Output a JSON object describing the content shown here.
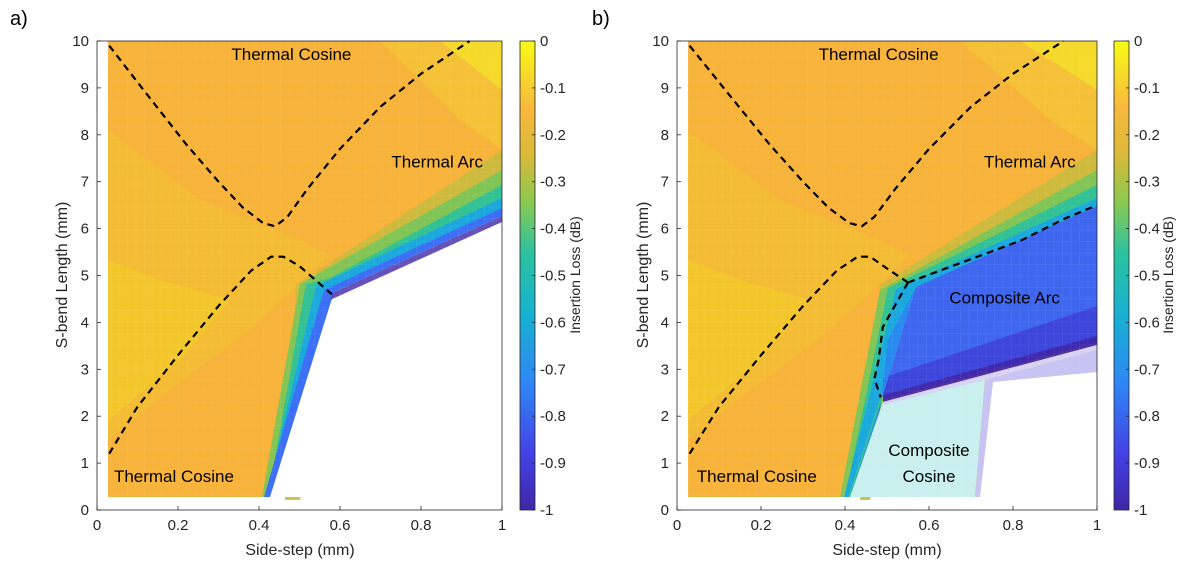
{
  "chart_data": [
    {
      "type": "heatmap",
      "panel_label": "a)",
      "xlabel": "Side-step (mm)",
      "ylabel": "S-bend Length (mm)",
      "xlim": [
        0,
        1
      ],
      "ylim": [
        0,
        10
      ],
      "x_ticks": [
        "0",
        "0.2",
        "0.4",
        "0.6",
        "0.8",
        "1"
      ],
      "y_ticks": [
        "0",
        "1",
        "2",
        "3",
        "4",
        "5",
        "6",
        "7",
        "8",
        "9",
        "10"
      ],
      "colorbar": {
        "label": "Insertion Loss (dB)",
        "range": [
          -1,
          0
        ],
        "ticks": [
          "0",
          "-0.1",
          "-0.2",
          "-0.3",
          "-0.4",
          "-0.5",
          "-0.6",
          "-0.7",
          "-0.8",
          "-0.9",
          "-1"
        ],
        "colormap": [
          "#3e26a8",
          "#4552f0",
          "#1ea6d8",
          "#2cc29e",
          "#96c745",
          "#f5ae3a",
          "#f9fb15"
        ]
      },
      "regions": [
        {
          "label": "Thermal Cosine",
          "x": 0.48,
          "y": 9.6
        },
        {
          "label": "Thermal Arc",
          "x": 0.84,
          "y": 7.3
        },
        {
          "label": "Thermal Cosine",
          "x": 0.19,
          "y": 0.6
        }
      ],
      "boundaries": [
        {
          "x": [
            0.03,
            0.12,
            0.22,
            0.3,
            0.36,
            0.41,
            0.44,
            0.47,
            0.52,
            0.6,
            0.7,
            0.8,
            0.92
          ],
          "y": [
            9.9,
            8.9,
            7.8,
            7.0,
            6.45,
            6.12,
            6.05,
            6.25,
            6.85,
            7.7,
            8.6,
            9.3,
            10.0
          ]
        },
        {
          "x": [
            0.03,
            0.1,
            0.2,
            0.3,
            0.38,
            0.43,
            0.46,
            0.5,
            0.54,
            0.58
          ],
          "y": [
            1.2,
            2.2,
            3.3,
            4.35,
            5.1,
            5.4,
            5.4,
            5.2,
            4.9,
            4.6
          ]
        }
      ]
    },
    {
      "type": "heatmap",
      "panel_label": "b)",
      "xlabel": "Side-step (mm)",
      "ylabel": "S-bend Length (mm)",
      "xlim": [
        0,
        1
      ],
      "ylim": [
        0,
        10
      ],
      "x_ticks": [
        "0",
        "0.2",
        "0.4",
        "0.6",
        "0.8",
        "1"
      ],
      "y_ticks": [
        "0",
        "1",
        "2",
        "3",
        "4",
        "5",
        "6",
        "7",
        "8",
        "9",
        "10"
      ],
      "colorbar": {
        "label": "Insertion Loss (dB)",
        "range": [
          -1,
          0
        ],
        "ticks": [
          "0",
          "-0.1",
          "-0.2",
          "-0.3",
          "-0.4",
          "-0.5",
          "-0.6",
          "-0.7",
          "-0.8",
          "-0.9",
          "-1"
        ],
        "colormap": [
          "#3e26a8",
          "#4552f0",
          "#1ea6d8",
          "#2cc29e",
          "#96c745",
          "#f5ae3a",
          "#f9fb15"
        ]
      },
      "regions": [
        {
          "label": "Thermal Cosine",
          "x": 0.48,
          "y": 9.6
        },
        {
          "label": "Thermal Arc",
          "x": 0.84,
          "y": 7.3
        },
        {
          "label": "Composite Arc",
          "x": 0.78,
          "y": 4.4
        },
        {
          "label": "Composite",
          "x": 0.6,
          "y": 1.15
        },
        {
          "label": "Cosine",
          "x": 0.6,
          "y": 0.6
        },
        {
          "label": "Thermal Cosine",
          "x": 0.19,
          "y": 0.6
        }
      ],
      "boundaries": [
        {
          "x": [
            0.03,
            0.12,
            0.22,
            0.3,
            0.36,
            0.41,
            0.44,
            0.47,
            0.52,
            0.6,
            0.7,
            0.8,
            0.92
          ],
          "y": [
            9.9,
            8.9,
            7.8,
            7.0,
            6.45,
            6.12,
            6.05,
            6.25,
            6.85,
            7.7,
            8.6,
            9.3,
            10.0
          ]
        },
        {
          "x": [
            0.03,
            0.1,
            0.2,
            0.3,
            0.38,
            0.43,
            0.46,
            0.5,
            0.55
          ],
          "y": [
            1.2,
            2.2,
            3.3,
            4.35,
            5.1,
            5.4,
            5.4,
            5.15,
            4.85
          ]
        },
        {
          "x": [
            0.55,
            0.58,
            0.7,
            0.82,
            0.92,
            1.0
          ],
          "y": [
            4.85,
            4.95,
            5.35,
            5.75,
            6.2,
            6.5
          ]
        },
        {
          "x": [
            0.55,
            0.49,
            0.48,
            0.47,
            0.485
          ],
          "y": [
            4.85,
            3.9,
            3.2,
            2.8,
            2.4
          ]
        }
      ]
    }
  ]
}
